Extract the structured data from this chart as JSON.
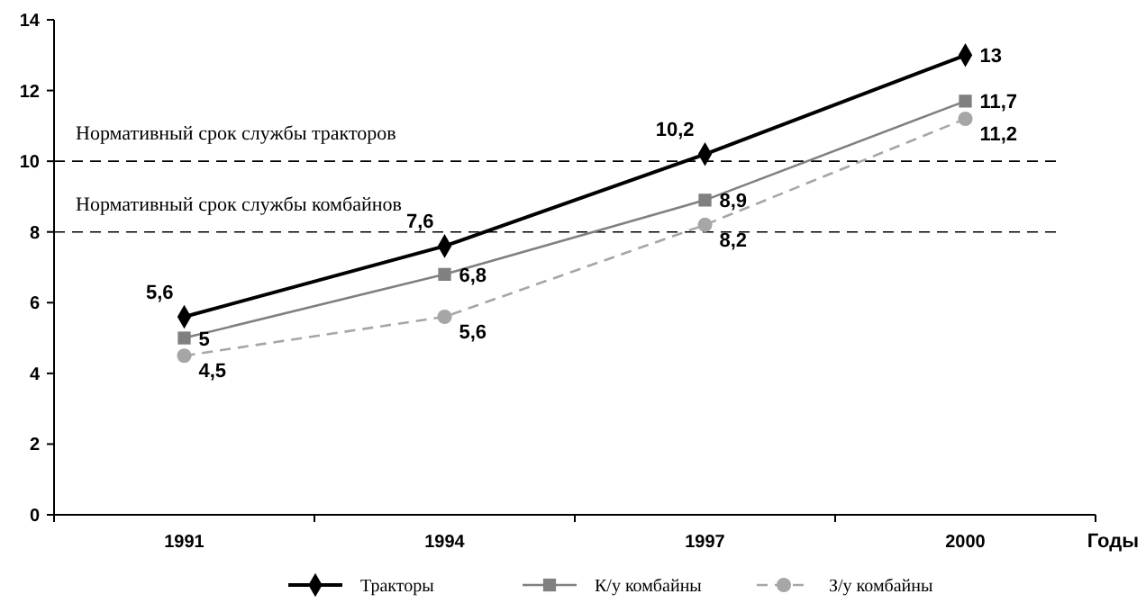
{
  "chart_data": {
    "type": "line",
    "xlabel": "Годы",
    "categories": [
      "1991",
      "1994",
      "1997",
      "2000"
    ],
    "series": [
      {
        "name": "Тракторы",
        "color": "#000000",
        "values": [
          5.6,
          7.6,
          10.2,
          13
        ],
        "value_labels": [
          "5,6",
          "7,6",
          "10,2",
          "13"
        ],
        "marker": "diamond",
        "line_style": "solid"
      },
      {
        "name": "К/у комбайны",
        "color": "#808080",
        "values": [
          5,
          6.8,
          8.9,
          11.7
        ],
        "value_labels": [
          "5",
          "6,8",
          "8,9",
          "11,7"
        ],
        "marker": "square",
        "line_style": "solid"
      },
      {
        "name": "З/у комбайны",
        "color": "#a6a6a6",
        "values": [
          4.5,
          5.6,
          8.2,
          11.2
        ],
        "value_labels": [
          "4,5",
          "5,6",
          "8,2",
          "11,2"
        ],
        "marker": "circle",
        "line_style": "dashed"
      }
    ],
    "ylim": [
      0,
      14
    ],
    "yticks": [
      0,
      2,
      4,
      6,
      8,
      10,
      12,
      14
    ],
    "ref_lines": [
      {
        "axis": "y",
        "value": 10,
        "label": "Нормативный срок службы тракторов",
        "color": "#000000",
        "line_style": "dashed"
      },
      {
        "axis": "y",
        "value": 8,
        "label": "Нормативный срок службы комбайнов",
        "color": "#000000",
        "line_style": "dashed"
      }
    ],
    "grid": false,
    "legend": "bottom"
  }
}
